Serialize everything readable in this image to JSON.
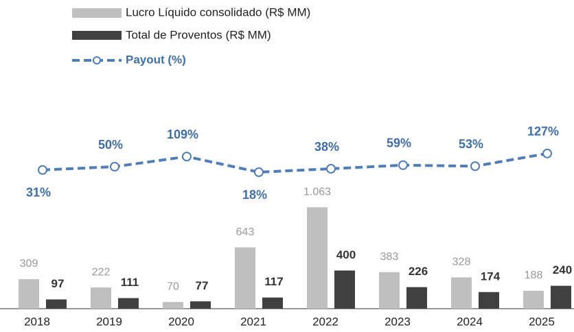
{
  "chart_data": {
    "type": "bar",
    "categories": [
      "2018",
      "2019",
      "2020",
      "2021",
      "2022",
      "2023",
      "2024",
      "2025"
    ],
    "series": [
      {
        "name": "Lucro Líquido consolidado (R$ MM)",
        "color": "#bfbfbf",
        "values": [
          309,
          222,
          70,
          643,
          1063,
          383,
          328,
          188
        ],
        "value_labels": [
          "309",
          "222",
          "70",
          "643",
          "1.063",
          "383",
          "328",
          "188"
        ]
      },
      {
        "name": "Total de Proventos (R$ MM)",
        "color": "#404040",
        "values": [
          97,
          111,
          77,
          117,
          400,
          226,
          174,
          240
        ]
      },
      {
        "name": "Payout (%)",
        "color": "#4f7db5",
        "type": "line",
        "axis": "y2",
        "values": [
          31,
          50,
          109,
          18,
          38,
          59,
          53,
          127
        ],
        "value_labels": [
          "31%",
          "50%",
          "109%",
          "18%",
          "38%",
          "59%",
          "53%",
          "127%"
        ]
      }
    ],
    "ylim": [
      0,
      1100
    ],
    "y2lim": [
      0,
      150
    ]
  }
}
